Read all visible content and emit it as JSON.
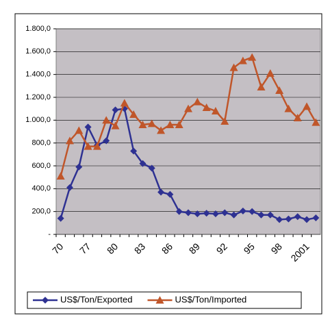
{
  "chart_data": {
    "type": "line",
    "categories": [
      "70",
      null,
      null,
      "77",
      null,
      null,
      "80",
      null,
      null,
      "83",
      null,
      null,
      "86",
      null,
      null,
      "89",
      null,
      null,
      "92",
      null,
      null,
      "95",
      null,
      null,
      "98",
      null,
      null,
      "2001",
      null
    ],
    "series": [
      {
        "name": "US$/Ton/Exported",
        "color": "#2e3192",
        "marker": "diamond",
        "values": [
          140,
          410,
          590,
          940,
          780,
          820,
          1090,
          1100,
          730,
          620,
          580,
          370,
          350,
          200,
          190,
          180,
          185,
          180,
          190,
          170,
          205,
          200,
          170,
          170,
          130,
          135,
          155,
          130,
          145
        ]
      },
      {
        "name": "US$/Ton/Imported",
        "color": "#c0562a",
        "marker": "triangle",
        "values": [
          510,
          820,
          910,
          770,
          770,
          1000,
          950,
          1150,
          1050,
          960,
          970,
          910,
          960,
          960,
          1100,
          1160,
          1110,
          1080,
          990,
          1460,
          1520,
          1550,
          1290,
          1410,
          1260,
          1100,
          1020,
          1120,
          980
        ]
      }
    ],
    "ylim": [
      0,
      1800
    ],
    "yticks": [
      {
        "value": 0,
        "label": "-"
      },
      {
        "value": 200,
        "label": "200,0"
      },
      {
        "value": 400,
        "label": "400,0"
      },
      {
        "value": 600,
        "label": "600,0"
      },
      {
        "value": 800,
        "label": "800,0"
      },
      {
        "value": 1000,
        "label": "1.000,0"
      },
      {
        "value": 1200,
        "label": "1.200,0"
      },
      {
        "value": 1400,
        "label": "1.400,0"
      },
      {
        "value": 1600,
        "label": "1.600,0"
      },
      {
        "value": 1800,
        "label": "1.800,0"
      }
    ],
    "grid": true,
    "legend": "bottom"
  }
}
